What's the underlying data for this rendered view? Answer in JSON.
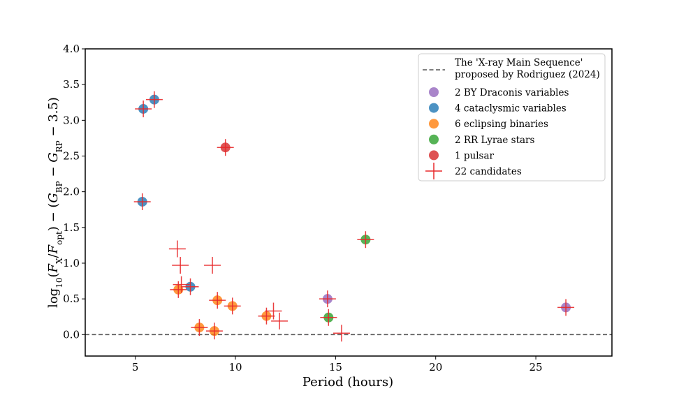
{
  "chart_data": {
    "type": "scatter",
    "xlabel": "Period (hours)",
    "ylabel": "log10(FX/Fopt) − (GBP − GRP − 3.5)",
    "xlim": [
      2.5,
      28.8
    ],
    "ylim": [
      -0.3,
      4.0
    ],
    "x_ticks": [
      "5",
      "10",
      "15",
      "20",
      "25"
    ],
    "y_ticks": [
      "0.0",
      "0.5",
      "1.0",
      "1.5",
      "2.0",
      "2.5",
      "3.0",
      "3.5",
      "4.0"
    ],
    "legend_position": "top-right",
    "reference_line": {
      "y": 0.0,
      "label_line1": "The 'X-ray Main Sequence'",
      "label_line2": "proposed by Rodriguez (2024)",
      "color": "#555555"
    },
    "series": [
      {
        "name": "2 BY Draconis variables",
        "marker": "circle",
        "color": "#9467bd",
        "points": [
          [
            14.6,
            0.5
          ],
          [
            26.5,
            0.38
          ]
        ]
      },
      {
        "name": "4 cataclysmic variables",
        "marker": "circle",
        "color": "#1f77b4",
        "points": [
          [
            5.4,
            3.16
          ],
          [
            5.95,
            3.29
          ],
          [
            5.35,
            1.86
          ],
          [
            7.75,
            0.67
          ]
        ]
      },
      {
        "name": "6 eclipsing binaries",
        "marker": "circle",
        "color": "#ff7f0e",
        "points": [
          [
            7.15,
            0.63
          ],
          [
            8.2,
            0.1
          ],
          [
            9.1,
            0.48
          ],
          [
            9.85,
            0.4
          ],
          [
            8.95,
            0.05
          ],
          [
            11.55,
            0.26
          ]
        ]
      },
      {
        "name": "2 RR Lyrae stars",
        "marker": "circle",
        "color": "#2ca02c",
        "points": [
          [
            14.65,
            0.24
          ],
          [
            16.5,
            1.33
          ]
        ]
      },
      {
        "name": "1 pulsar",
        "marker": "circle",
        "color": "#d62728",
        "points": [
          [
            9.5,
            2.62
          ]
        ]
      },
      {
        "name": "22 candidates",
        "marker": "plus",
        "color": "#e8292a",
        "points": [
          [
            5.4,
            3.16
          ],
          [
            5.95,
            3.29
          ],
          [
            5.35,
            1.86
          ],
          [
            9.5,
            2.62
          ],
          [
            7.1,
            1.2
          ],
          [
            7.25,
            0.97
          ],
          [
            8.85,
            0.97
          ],
          [
            7.3,
            0.7
          ],
          [
            7.75,
            0.67
          ],
          [
            9.1,
            0.48
          ],
          [
            9.85,
            0.4
          ],
          [
            7.15,
            0.63
          ],
          [
            8.2,
            0.1
          ],
          [
            8.95,
            0.05
          ],
          [
            11.55,
            0.26
          ],
          [
            11.9,
            0.33
          ],
          [
            12.2,
            0.19
          ],
          [
            15.3,
            0.02
          ],
          [
            14.6,
            0.5
          ],
          [
            14.65,
            0.24
          ],
          [
            16.5,
            1.33
          ],
          [
            26.5,
            0.38
          ]
        ]
      }
    ]
  }
}
